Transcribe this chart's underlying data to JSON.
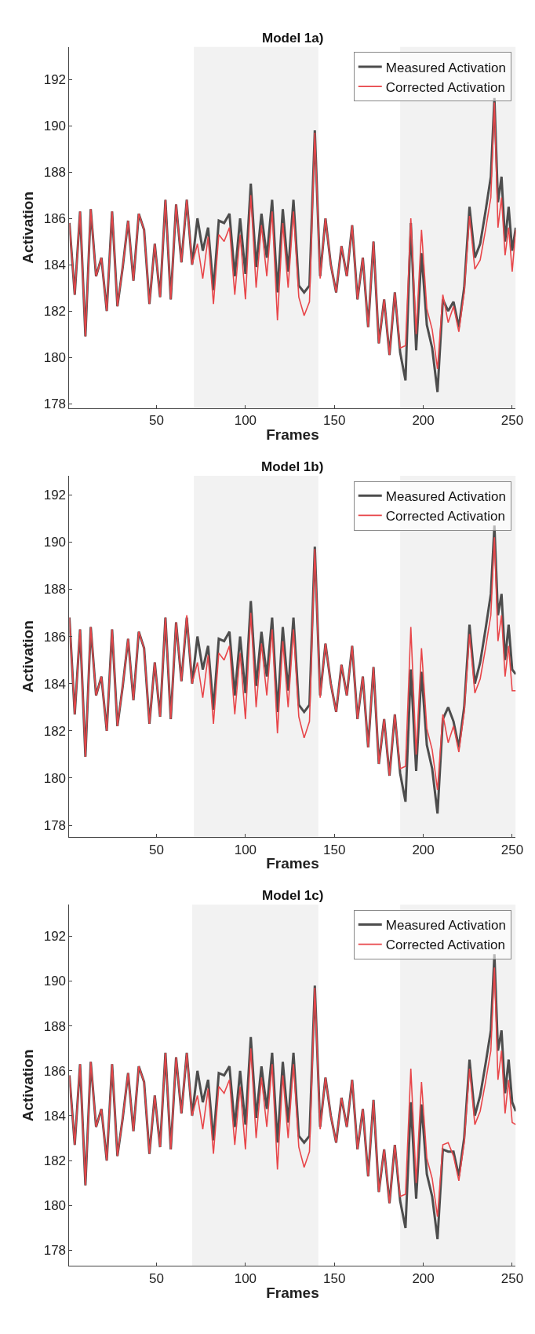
{
  "chart_data": [
    {
      "type": "line",
      "title": "Model 1a)",
      "xlabel": "Frames",
      "ylabel": "Activation",
      "legend": "top right",
      "grid": false,
      "marker": "none",
      "x": [
        1,
        4,
        7,
        10,
        13,
        16,
        19,
        22,
        25,
        28,
        31,
        34,
        37,
        40,
        43,
        46,
        49,
        52,
        55,
        58,
        61,
        64,
        67,
        70,
        73,
        76,
        79,
        82,
        85,
        88,
        91,
        94,
        97,
        100,
        103,
        106,
        109,
        112,
        115,
        118,
        121,
        124,
        127,
        130,
        133,
        136,
        139,
        142,
        145,
        148,
        151,
        154,
        157,
        160,
        163,
        166,
        169,
        172,
        175,
        178,
        181,
        184,
        187,
        190,
        193,
        196,
        199,
        202,
        205,
        208,
        211,
        214,
        217,
        220,
        223,
        226,
        229,
        232,
        235,
        238,
        240,
        242,
        244,
        246,
        248,
        250,
        252
      ],
      "series": [
        {
          "name": "Measured Activation",
          "color": "#4d4d4d",
          "values": [
            185.8,
            182.7,
            186.3,
            180.9,
            186.4,
            183.5,
            184.3,
            182.0,
            186.3,
            182.2,
            183.9,
            185.9,
            183.3,
            186.2,
            185.5,
            182.3,
            184.9,
            182.6,
            186.8,
            182.5,
            186.6,
            184.1,
            186.8,
            184.0,
            186.0,
            184.6,
            185.6,
            182.9,
            185.9,
            185.8,
            186.2,
            183.5,
            186.0,
            183.6,
            187.5,
            183.9,
            186.2,
            184.3,
            186.8,
            182.8,
            186.4,
            183.7,
            186.8,
            183.1,
            182.8,
            183.1,
            189.8,
            183.5,
            186.0,
            184.0,
            182.8,
            184.8,
            183.5,
            185.7,
            182.5,
            184.3,
            181.3,
            185.0,
            180.6,
            182.5,
            180.1,
            182.8,
            180.2,
            179.0,
            185.8,
            180.3,
            184.5,
            181.4,
            180.4,
            178.5,
            182.5,
            182.0,
            182.4,
            181.3,
            183.0,
            186.5,
            184.3,
            184.9,
            186.3,
            187.8,
            191.2,
            186.7,
            187.8,
            185.0,
            186.5,
            184.6,
            185.6
          ]
        },
        {
          "name": "Corrected Activation",
          "color": "#e8464a",
          "values": [
            185.8,
            182.7,
            186.3,
            180.9,
            186.4,
            183.5,
            184.3,
            182.0,
            186.3,
            182.2,
            183.9,
            185.9,
            183.3,
            186.2,
            185.5,
            182.3,
            184.9,
            182.6,
            186.8,
            182.5,
            186.6,
            184.1,
            186.8,
            184.0,
            184.9,
            183.4,
            185.2,
            182.3,
            185.3,
            185.0,
            185.6,
            182.7,
            185.3,
            182.5,
            187.0,
            183.0,
            185.7,
            183.5,
            186.3,
            181.6,
            185.8,
            183.0,
            186.3,
            182.6,
            181.8,
            182.4,
            189.7,
            183.4,
            186.0,
            184.0,
            182.8,
            184.8,
            183.5,
            185.7,
            182.5,
            184.3,
            181.3,
            185.0,
            180.6,
            182.5,
            180.1,
            182.8,
            180.4,
            180.5,
            186.0,
            181.0,
            185.5,
            182.1,
            181.2,
            179.5,
            182.7,
            181.5,
            182.2,
            181.1,
            182.8,
            186.1,
            183.8,
            184.2,
            185.5,
            186.9,
            191.0,
            185.6,
            186.9,
            184.4,
            185.6,
            183.7,
            185.5
          ]
        }
      ],
      "xlim": [
        1,
        252
      ],
      "ylim": [
        177.8,
        193.4
      ],
      "xticks": [
        50,
        100,
        150,
        200,
        250
      ],
      "yticks": [
        178,
        180,
        182,
        184,
        186,
        188,
        190,
        192
      ],
      "bands": [
        {
          "axis": "x",
          "from": 71,
          "to": 141,
          "color": "#f2f2f2"
        },
        {
          "axis": "x",
          "from": 187,
          "to": 252,
          "color": "#f2f2f2"
        }
      ]
    },
    {
      "type": "line",
      "title": "Model 1b)",
      "xlabel": "Frames",
      "ylabel": "Activation",
      "legend": "top right",
      "grid": false,
      "marker": "none",
      "x": [
        1,
        4,
        7,
        10,
        13,
        16,
        19,
        22,
        25,
        28,
        31,
        34,
        37,
        40,
        43,
        46,
        49,
        52,
        55,
        58,
        61,
        64,
        67,
        70,
        73,
        76,
        79,
        82,
        85,
        88,
        91,
        94,
        97,
        100,
        103,
        106,
        109,
        112,
        115,
        118,
        121,
        124,
        127,
        130,
        133,
        136,
        139,
        142,
        145,
        148,
        151,
        154,
        157,
        160,
        163,
        166,
        169,
        172,
        175,
        178,
        181,
        184,
        187,
        190,
        193,
        196,
        199,
        202,
        205,
        208,
        211,
        214,
        217,
        220,
        223,
        226,
        229,
        232,
        235,
        238,
        240,
        242,
        244,
        246,
        248,
        250,
        252
      ],
      "series": [
        {
          "name": "Measured Activation",
          "color": "#4d4d4d",
          "values": [
            186.8,
            182.7,
            186.3,
            180.9,
            186.4,
            183.5,
            184.3,
            182.0,
            186.3,
            182.2,
            183.9,
            185.9,
            183.3,
            186.2,
            185.5,
            182.3,
            184.9,
            182.6,
            186.8,
            182.5,
            186.6,
            184.1,
            186.8,
            184.0,
            186.0,
            184.6,
            185.6,
            182.9,
            185.9,
            185.8,
            186.2,
            183.5,
            186.0,
            183.6,
            187.5,
            183.9,
            186.2,
            184.3,
            186.8,
            182.8,
            186.4,
            183.7,
            186.8,
            183.1,
            182.8,
            183.1,
            189.8,
            183.5,
            185.7,
            184.0,
            182.8,
            184.8,
            183.5,
            185.6,
            182.5,
            184.3,
            181.3,
            184.7,
            180.6,
            182.5,
            180.1,
            182.7,
            180.2,
            179.0,
            184.6,
            180.3,
            184.5,
            181.4,
            180.4,
            178.5,
            182.5,
            183.0,
            182.4,
            181.3,
            183.0,
            186.5,
            184.0,
            184.9,
            186.3,
            187.8,
            190.7,
            186.9,
            187.8,
            185.0,
            186.5,
            184.6,
            184.4
          ]
        },
        {
          "name": "Corrected Activation",
          "color": "#e8464a",
          "values": [
            186.8,
            182.7,
            186.3,
            180.9,
            186.4,
            183.5,
            184.3,
            182.0,
            186.3,
            182.2,
            183.9,
            185.9,
            183.3,
            186.2,
            185.5,
            182.3,
            184.9,
            182.6,
            186.8,
            182.5,
            186.6,
            184.1,
            186.9,
            184.0,
            184.9,
            183.4,
            185.2,
            182.3,
            185.3,
            185.0,
            185.6,
            182.7,
            185.3,
            182.5,
            187.0,
            183.0,
            185.7,
            183.5,
            186.3,
            181.9,
            185.8,
            183.0,
            186.3,
            182.6,
            181.7,
            182.4,
            189.7,
            183.4,
            185.7,
            184.0,
            182.8,
            184.8,
            183.5,
            185.6,
            182.5,
            184.3,
            181.3,
            184.7,
            180.6,
            182.5,
            180.1,
            182.7,
            180.4,
            180.5,
            186.4,
            181.0,
            185.5,
            182.1,
            181.2,
            179.5,
            182.7,
            181.5,
            182.2,
            181.1,
            182.8,
            186.1,
            183.6,
            184.2,
            185.5,
            186.9,
            190.2,
            185.8,
            186.9,
            184.3,
            185.6,
            183.7,
            183.7
          ]
        }
      ],
      "xlim": [
        1,
        252
      ],
      "ylim": [
        177.5,
        192.8
      ],
      "xticks": [
        50,
        100,
        150,
        200,
        250
      ],
      "yticks": [
        178,
        180,
        182,
        184,
        186,
        188,
        190,
        192
      ],
      "bands": [
        {
          "axis": "x",
          "from": 71,
          "to": 141,
          "color": "#f2f2f2"
        },
        {
          "axis": "x",
          "from": 187,
          "to": 252,
          "color": "#f2f2f2"
        }
      ]
    },
    {
      "type": "line",
      "title": "Model 1c)",
      "xlabel": "Frames",
      "ylabel": "Activation",
      "legend": "top right",
      "grid": false,
      "marker": "none",
      "x": [
        1,
        4,
        7,
        10,
        13,
        16,
        19,
        22,
        25,
        28,
        31,
        34,
        37,
        40,
        43,
        46,
        49,
        52,
        55,
        58,
        61,
        64,
        67,
        70,
        73,
        76,
        79,
        82,
        85,
        88,
        91,
        94,
        97,
        100,
        103,
        106,
        109,
        112,
        115,
        118,
        121,
        124,
        127,
        130,
        133,
        136,
        139,
        142,
        145,
        148,
        151,
        154,
        157,
        160,
        163,
        166,
        169,
        172,
        175,
        178,
        181,
        184,
        187,
        190,
        193,
        196,
        199,
        202,
        205,
        208,
        211,
        214,
        217,
        220,
        223,
        226,
        229,
        232,
        235,
        238,
        240,
        242,
        244,
        246,
        248,
        250,
        252
      ],
      "series": [
        {
          "name": "Measured Activation",
          "color": "#4d4d4d",
          "values": [
            185.8,
            182.7,
            186.3,
            180.9,
            186.4,
            183.5,
            184.3,
            182.0,
            186.3,
            182.2,
            183.9,
            185.9,
            183.3,
            186.2,
            185.5,
            182.3,
            184.9,
            182.6,
            186.8,
            182.5,
            186.6,
            184.1,
            186.8,
            184.0,
            186.0,
            184.6,
            185.6,
            182.9,
            185.9,
            185.8,
            186.2,
            183.5,
            186.0,
            183.6,
            187.5,
            183.9,
            186.2,
            184.3,
            186.8,
            182.8,
            186.4,
            183.7,
            186.8,
            183.1,
            182.8,
            183.1,
            189.8,
            183.5,
            185.7,
            184.0,
            182.8,
            184.8,
            183.5,
            185.6,
            182.5,
            184.3,
            181.3,
            184.7,
            180.6,
            182.5,
            180.1,
            182.7,
            180.2,
            179.0,
            184.6,
            180.3,
            184.5,
            181.4,
            180.4,
            178.5,
            182.5,
            182.4,
            182.4,
            181.3,
            183.0,
            186.5,
            184.0,
            184.9,
            186.3,
            187.8,
            191.2,
            186.9,
            187.8,
            185.0,
            186.5,
            184.6,
            184.2
          ]
        },
        {
          "name": "Corrected Activation",
          "color": "#e8464a",
          "values": [
            185.8,
            182.7,
            186.3,
            180.9,
            186.4,
            183.5,
            184.3,
            182.0,
            186.3,
            182.2,
            183.9,
            185.9,
            183.3,
            186.2,
            185.5,
            182.3,
            184.9,
            182.6,
            186.8,
            182.5,
            186.6,
            184.1,
            186.8,
            184.0,
            184.9,
            183.4,
            185.2,
            182.3,
            185.3,
            185.0,
            185.6,
            182.7,
            185.3,
            182.5,
            187.0,
            183.0,
            185.7,
            183.5,
            186.3,
            181.6,
            185.8,
            183.0,
            186.3,
            182.6,
            181.7,
            182.4,
            189.7,
            183.4,
            185.7,
            184.0,
            182.8,
            184.8,
            183.5,
            185.6,
            182.5,
            184.3,
            181.3,
            184.7,
            180.6,
            182.5,
            180.1,
            182.7,
            180.4,
            180.5,
            186.1,
            181.0,
            185.5,
            182.1,
            181.2,
            179.5,
            182.7,
            182.8,
            182.2,
            181.1,
            182.8,
            186.1,
            183.6,
            184.2,
            185.5,
            186.9,
            190.6,
            185.6,
            186.9,
            184.1,
            185.6,
            183.7,
            183.6
          ]
        }
      ],
      "xlim": [
        1,
        252
      ],
      "ylim": [
        177.3,
        193.4
      ],
      "xticks": [
        50,
        100,
        150,
        200,
        250
      ],
      "yticks": [
        178,
        180,
        182,
        184,
        186,
        188,
        190,
        192
      ],
      "bands": [
        {
          "axis": "x",
          "from": 70,
          "to": 141,
          "color": "#f2f2f2"
        },
        {
          "axis": "x",
          "from": 187,
          "to": 252,
          "color": "#f2f2f2"
        }
      ]
    }
  ]
}
